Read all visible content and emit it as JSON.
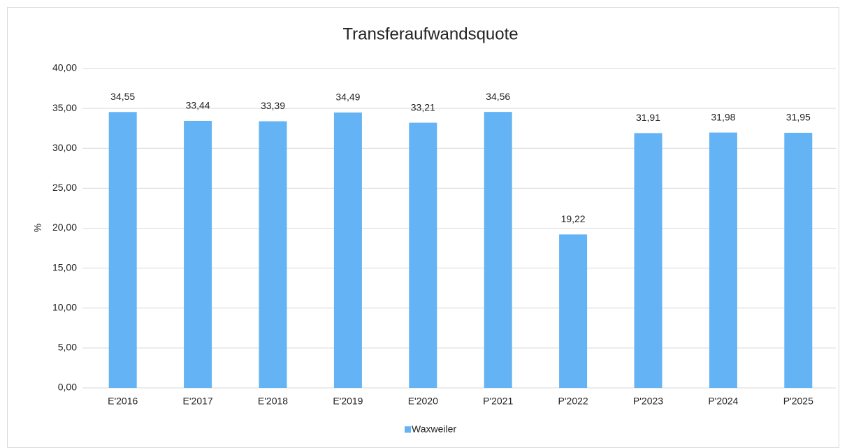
{
  "chart_data": {
    "type": "bar",
    "title": "Transferaufwandsquote",
    "y_label": "%",
    "categories": [
      "E'2016",
      "E'2017",
      "E'2018",
      "E'2019",
      "E'2020",
      "P'2021",
      "P'2022",
      "P'2023",
      "P'2024",
      "P'2025"
    ],
    "series": [
      {
        "name": "Waxweiler",
        "color": "#63b3f5",
        "values": [
          34.55,
          33.44,
          33.39,
          34.49,
          33.21,
          34.56,
          19.22,
          31.91,
          31.98,
          31.95
        ],
        "value_labels": [
          "34,55",
          "33,44",
          "33,39",
          "34,49",
          "33,21",
          "34,56",
          "19,22",
          "31,91",
          "31,98",
          "31,95"
        ]
      }
    ],
    "ylim": [
      0,
      40
    ],
    "yticks": [
      {
        "value": 0,
        "label": "0,00"
      },
      {
        "value": 5,
        "label": "5,00"
      },
      {
        "value": 10,
        "label": "10,00"
      },
      {
        "value": 15,
        "label": "15,00"
      },
      {
        "value": 20,
        "label": "20,00"
      },
      {
        "value": 25,
        "label": "25,00"
      },
      {
        "value": 30,
        "label": "30,00"
      },
      {
        "value": 35,
        "label": "35,00"
      },
      {
        "value": 40,
        "label": "40,00"
      }
    ],
    "grid": true,
    "legend": "bottom"
  }
}
